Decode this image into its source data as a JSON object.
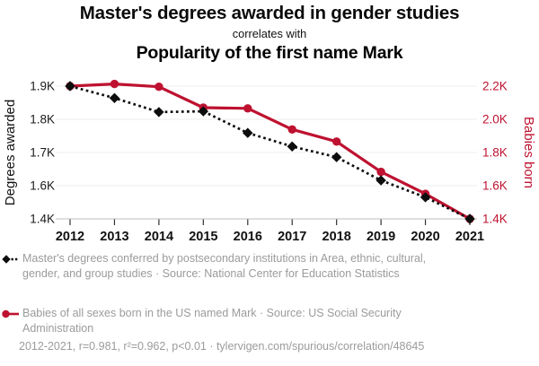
{
  "chart_data": {
    "type": "line",
    "title": "Master's degrees awarded in gender studies",
    "subtitle": "correlates with",
    "secondary_title": "Popularity of the first name Mark",
    "x": [
      2012,
      2013,
      2014,
      2015,
      2016,
      2017,
      2018,
      2019,
      2020,
      2021
    ],
    "series": [
      {
        "name": "Master's degrees in gender studies",
        "legend_label": "Master's degrees conferred by postsecondary institutions in Area, ethnic, cultural, gender, and group studies · Source: National Center for Education Statistics",
        "axis": "left",
        "color": "#0d0d0d",
        "line_style": "dotted",
        "marker": "diamond",
        "values": [
          1900,
          1864,
          1822,
          1824,
          1759,
          1718,
          1686,
          1616,
          1530,
          1400
        ]
      },
      {
        "name": "Babies born in the US named Mark",
        "legend_label": "Babies of all sexes born in the US named Mark · Source: US Social Security Administration",
        "axis": "right",
        "color": "#be1230",
        "line_style": "solid",
        "marker": "circle",
        "values": [
          2200,
          2213,
          2196,
          2070,
          2066,
          1939,
          1866,
          1683,
          1551,
          1400
        ]
      }
    ],
    "left_axis": {
      "label": "Degrees awarded",
      "tick_values": [
        1900,
        1800,
        1700,
        1600,
        1400
      ],
      "tick_labels": [
        "1.9K",
        "1.8K",
        "1.7K",
        "1.6K",
        "1.4K"
      ]
    },
    "right_axis": {
      "label": "Babies born",
      "tick_values": [
        2200,
        2000,
        1800,
        1600,
        1400
      ],
      "tick_labels": [
        "2.2K",
        "2.0K",
        "1.8K",
        "1.6K",
        "1.4K"
      ]
    },
    "grid": true,
    "legend_position": "bottom",
    "footnote": "2012-2021, r=0.981, r²=0.962, p<0.01 · tylervigen.com/spurious/correlation/48645"
  },
  "colors": {
    "accent_red": "#be1230",
    "series_black": "#0d0d0d",
    "muted_text": "#9b9b9b",
    "gridline": "#ececec",
    "axis_line": "#c9c9c9"
  }
}
